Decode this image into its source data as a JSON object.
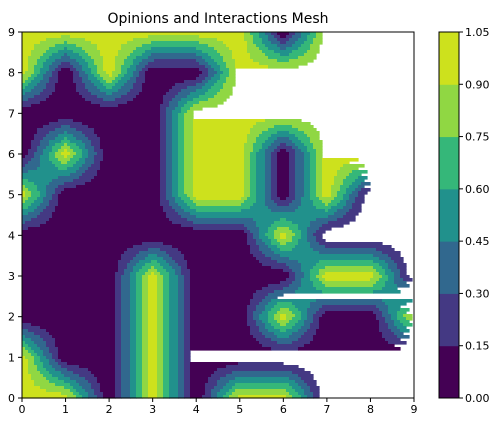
{
  "chart_data": {
    "type": "heatmap",
    "title": "Opinions and Interactions Mesh",
    "xlabel": "",
    "ylabel": "",
    "x": [
      0,
      1,
      2,
      3,
      4,
      5,
      6,
      7,
      8,
      9
    ],
    "y": [
      0,
      1,
      2,
      3,
      4,
      5,
      6,
      7,
      8,
      9
    ],
    "xlim": [
      0,
      9
    ],
    "ylim": [
      0,
      9
    ],
    "x_ticks": [
      "0",
      "1",
      "2",
      "3",
      "4",
      "5",
      "6",
      "7",
      "8",
      "9"
    ],
    "y_ticks": [
      "0",
      "1",
      "2",
      "3",
      "4",
      "5",
      "6",
      "7",
      "8",
      "9"
    ],
    "z": [
      [
        1,
        1,
        0,
        1,
        0,
        1,
        1,
        0,
        0,
        0
      ],
      [
        1,
        0,
        0,
        1,
        0,
        0,
        0,
        0,
        0,
        0
      ],
      [
        0,
        0,
        0,
        1,
        0,
        0,
        1,
        0,
        0,
        1
      ],
      [
        0,
        0,
        0,
        1,
        0,
        0,
        0,
        1,
        1,
        0
      ],
      [
        0,
        0,
        0,
        0,
        0,
        0,
        1,
        0,
        0,
        0
      ],
      [
        1,
        0,
        0,
        0,
        1,
        1,
        0,
        1,
        0,
        0
      ],
      [
        0,
        1,
        0,
        0,
        1,
        1,
        0,
        1,
        1,
        1
      ],
      [
        0,
        0,
        0,
        0,
        1,
        1,
        1,
        1,
        1,
        1
      ],
      [
        1,
        0,
        1,
        0,
        0,
        1,
        1,
        1,
        1,
        1
      ],
      [
        1,
        1,
        1,
        1,
        1,
        1,
        0,
        1,
        1,
        1
      ]
    ],
    "levels": [
      0.0,
      0.15,
      0.3,
      0.45,
      0.6,
      0.75,
      0.9,
      1.05
    ],
    "colorbar_ticks": [
      "0.00",
      "0.15",
      "0.30",
      "0.45",
      "0.60",
      "0.75",
      "0.90",
      "1.05"
    ],
    "band_colors": [
      "#440154",
      "#443983",
      "#31688e",
      "#21918c",
      "#35b779",
      "#90d743",
      "#cde11d"
    ],
    "grid": false
  }
}
